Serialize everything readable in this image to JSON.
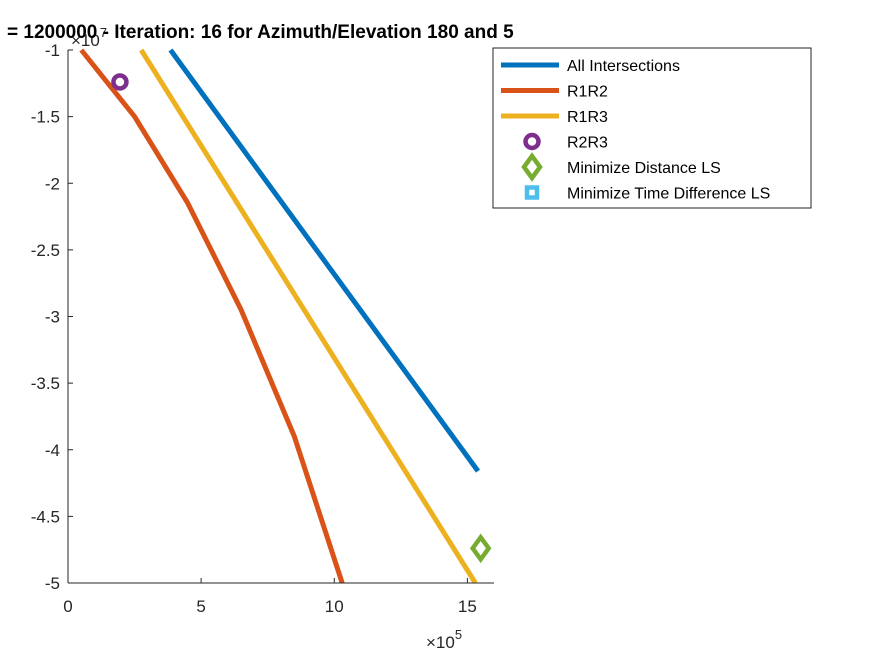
{
  "chart_data": {
    "type": "line",
    "title": "= 1200000 - Iteration: 16 for Azimuth/Elevation 180 and 5",
    "xlabel": "",
    "ylabel": "",
    "x_exponent_label": "×10",
    "x_exponent_power": "5",
    "y_exponent_label": "×10",
    "y_exponent_power": "7",
    "xlim": [
      0,
      16
    ],
    "ylim": [
      -5,
      -1
    ],
    "x_ticks": [
      0,
      5,
      10,
      15
    ],
    "x_tick_labels": [
      "0",
      "5",
      "10",
      "15"
    ],
    "y_ticks": [
      -1,
      -1.5,
      -2,
      -2.5,
      -3,
      -3.5,
      -4,
      -4.5,
      -5
    ],
    "y_tick_labels": [
      "-1",
      "-1.5",
      "-2",
      "-2.5",
      "-3",
      "-3.5",
      "-4",
      "-4.5",
      "-5"
    ],
    "grid": false,
    "legend_position": "top-right",
    "series": [
      {
        "name": "All Intersections",
        "kind": "line",
        "color": "#0072BD",
        "x": [
          3.85,
          15.4
        ],
        "y": [
          -1.0,
          -4.16
        ]
      },
      {
        "name": "R1R2",
        "kind": "line",
        "color": "#D95319",
        "x": [
          0.5,
          2.5,
          4.5,
          6.5,
          8.5,
          10.3
        ],
        "y": [
          -1.0,
          -1.5,
          -2.15,
          -2.95,
          -3.9,
          -5.0
        ]
      },
      {
        "name": "R1R3",
        "kind": "line",
        "color": "#EDB120",
        "x": [
          2.75,
          15.3
        ],
        "y": [
          -1.0,
          -5.0
        ]
      },
      {
        "name": "R2R3",
        "kind": "marker",
        "marker": "circle",
        "color": "#7E2F8E",
        "x": [
          1.95
        ],
        "y": [
          -1.24
        ]
      },
      {
        "name": "Minimize Distance LS",
        "kind": "marker",
        "marker": "diamond",
        "color": "#77AC30",
        "x": [
          15.5
        ],
        "y": [
          -4.74
        ]
      },
      {
        "name": "Minimize Time Difference LS",
        "kind": "marker",
        "marker": "square",
        "color": "#4DBEEE",
        "x": [],
        "y": []
      }
    ]
  }
}
